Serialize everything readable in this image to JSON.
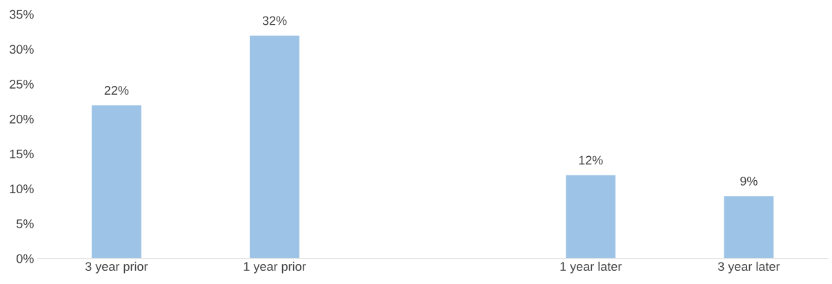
{
  "chart_data": {
    "type": "bar",
    "categories": [
      "3 year prior",
      "1 year prior",
      null,
      "1 year later",
      "3 year later"
    ],
    "values": [
      22,
      32,
      null,
      12,
      9
    ],
    "value_labels": [
      "22%",
      "32%",
      null,
      "12%",
      "9%"
    ],
    "color": "#9dc3e6",
    "ylim": [
      0,
      35
    ],
    "yticks": [
      {
        "value": 0,
        "label": "0%"
      },
      {
        "value": 5,
        "label": "5%"
      },
      {
        "value": 10,
        "label": "10%"
      },
      {
        "value": 15,
        "label": "15%"
      },
      {
        "value": 20,
        "label": "20%"
      },
      {
        "value": 25,
        "label": "25%"
      },
      {
        "value": 30,
        "label": "30%"
      },
      {
        "value": 35,
        "label": "35%"
      }
    ],
    "grid": false,
    "legend": false
  }
}
